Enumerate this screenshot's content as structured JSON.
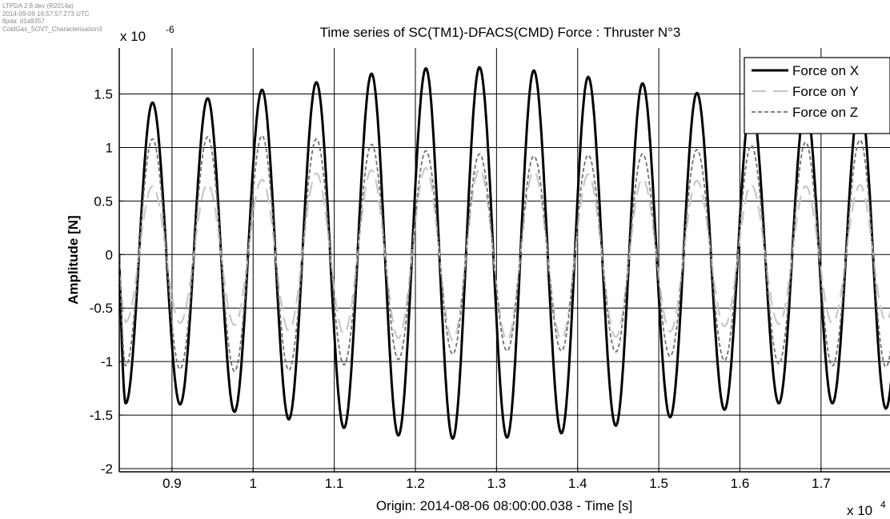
{
  "meta_lines": [
    "LTPDA 2.8.dev (R2014a)",
    "2014-09-09 16:57:57.273 UTC",
    "ltpda: d1a9357",
    "ColdGas_SOVT_Characterisation3"
  ],
  "chart_data": {
    "type": "line",
    "title": "Time series of SC(TM1)-DFACS(CMD) Force : Thruster N°3",
    "xlabel": "Origin: 2014-08-06 08:00:00.038 - Time  [s]",
    "ylabel": "Amplitude  [N]",
    "x_multiplier_label": "x 10",
    "x_multiplier_exp": "4",
    "y_multiplier_label": "x 10",
    "y_multiplier_exp": "-6",
    "xlim": [
      0.835,
      1.785
    ],
    "ylim": [
      -2.03,
      1.93
    ],
    "x_ticks": [
      0.9,
      1.0,
      1.1,
      1.2,
      1.3,
      1.4,
      1.5,
      1.6,
      1.7
    ],
    "x_tick_labels": [
      "0.9",
      "1",
      "1.1",
      "1.2",
      "1.3",
      "1.4",
      "1.5",
      "1.6",
      "1.7"
    ],
    "y_ticks": [
      -2,
      -1.5,
      -1,
      -0.5,
      0,
      0.5,
      1,
      1.5
    ],
    "y_tick_labels": [
      "-2",
      "-1.5",
      "-1",
      "-0.5",
      "0",
      "0.5",
      "1",
      "1.5"
    ],
    "grid": true,
    "legend_position": "top-right",
    "series": [
      {
        "name": "Force on X",
        "color": "#000000",
        "dash": "solid",
        "peaks": [
          [
            0.876,
            1.42
          ],
          [
            0.944,
            1.46
          ],
          [
            1.011,
            1.54
          ],
          [
            1.078,
            1.61
          ],
          [
            1.146,
            1.69
          ],
          [
            1.213,
            1.74
          ],
          [
            1.279,
            1.75
          ],
          [
            1.346,
            1.72
          ],
          [
            1.413,
            1.66
          ],
          [
            1.48,
            1.6
          ],
          [
            1.547,
            1.51
          ],
          [
            1.614,
            1.43
          ],
          [
            1.681,
            1.41
          ],
          [
            1.748,
            1.46
          ]
        ],
        "troughs": [
          [
            0.843,
            -1.39
          ],
          [
            0.91,
            -1.4
          ],
          [
            0.977,
            -1.47
          ],
          [
            1.044,
            -1.54
          ],
          [
            1.112,
            -1.62
          ],
          [
            1.179,
            -1.69
          ],
          [
            1.246,
            -1.72
          ],
          [
            1.313,
            -1.71
          ],
          [
            1.38,
            -1.67
          ],
          [
            1.447,
            -1.6
          ],
          [
            1.514,
            -1.52
          ],
          [
            1.581,
            -1.45
          ],
          [
            1.648,
            -1.39
          ],
          [
            1.714,
            -1.39
          ],
          [
            1.78,
            -1.44
          ]
        ]
      },
      {
        "name": "Force on Y",
        "color": "#c8c8c8",
        "dash": "long-dash",
        "peaks": [
          [
            0.876,
            0.64
          ],
          [
            0.944,
            0.66
          ],
          [
            1.011,
            0.7
          ],
          [
            1.078,
            0.76
          ],
          [
            1.146,
            0.79
          ],
          [
            1.213,
            0.81
          ],
          [
            1.279,
            0.8
          ],
          [
            1.346,
            0.78
          ],
          [
            1.413,
            0.75
          ],
          [
            1.48,
            0.71
          ],
          [
            1.547,
            0.69
          ],
          [
            1.614,
            0.65
          ],
          [
            1.681,
            0.64
          ],
          [
            1.748,
            0.65
          ]
        ],
        "troughs": [
          [
            0.843,
            -0.63
          ],
          [
            0.91,
            -0.64
          ],
          [
            0.977,
            -0.66
          ],
          [
            1.044,
            -0.71
          ],
          [
            1.112,
            -0.74
          ],
          [
            1.179,
            -0.78
          ],
          [
            1.246,
            -0.8
          ],
          [
            1.313,
            -0.8
          ],
          [
            1.38,
            -0.79
          ],
          [
            1.447,
            -0.77
          ],
          [
            1.514,
            -0.72
          ],
          [
            1.581,
            -0.67
          ],
          [
            1.648,
            -0.65
          ],
          [
            1.714,
            -0.64
          ],
          [
            1.78,
            -0.62
          ]
        ]
      },
      {
        "name": "Force on Z",
        "color": "#707070",
        "dash": "short-dash",
        "peaks": [
          [
            0.876,
            1.08
          ],
          [
            0.944,
            1.1
          ],
          [
            1.011,
            1.11
          ],
          [
            1.078,
            1.08
          ],
          [
            1.146,
            1.03
          ],
          [
            1.213,
            0.97
          ],
          [
            1.279,
            0.94
          ],
          [
            1.346,
            0.92
          ],
          [
            1.413,
            0.93
          ],
          [
            1.48,
            0.94
          ],
          [
            1.547,
            0.98
          ],
          [
            1.614,
            1.02
          ],
          [
            1.681,
            1.05
          ],
          [
            1.748,
            1.07
          ]
        ],
        "troughs": [
          [
            0.843,
            -1.04
          ],
          [
            0.91,
            -1.07
          ],
          [
            0.977,
            -1.09
          ],
          [
            1.044,
            -1.08
          ],
          [
            1.112,
            -1.03
          ],
          [
            1.179,
            -0.98
          ],
          [
            1.246,
            -0.93
          ],
          [
            1.313,
            -0.9
          ],
          [
            1.38,
            -0.9
          ],
          [
            1.447,
            -0.91
          ],
          [
            1.514,
            -0.95
          ],
          [
            1.581,
            -0.99
          ],
          [
            1.648,
            -1.02
          ],
          [
            1.714,
            -1.04
          ],
          [
            1.78,
            -1.05
          ]
        ]
      }
    ]
  }
}
